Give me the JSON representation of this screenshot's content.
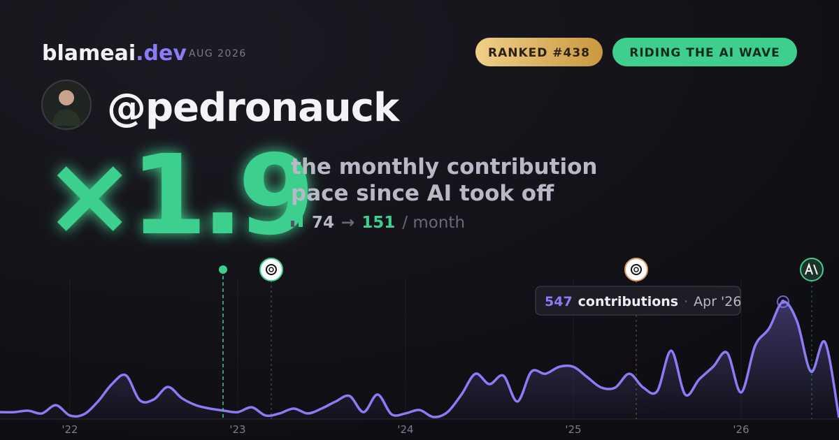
{
  "header": {
    "brand": "blameai",
    "brand_tld": ".dev",
    "period": "AUG 2026",
    "badges": [
      "RANKED #438",
      "RIDING THE AI WAVE"
    ]
  },
  "profile": {
    "handle": "@pedronauck"
  },
  "headline": {
    "multiplier": "×1.9",
    "description": [
      "the monthly contribution",
      "pace since AI took off"
    ],
    "from": 74,
    "arrow": "→",
    "to": 151,
    "unit": "/ month"
  },
  "tooltip": {
    "label": "contributions",
    "separator": "·",
    "date": "Apr '26"
  },
  "chart_data": {
    "type": "area",
    "color": "#8b7cf6",
    "categories": [
      null,
      null,
      null,
      null,
      null,
      "'22",
      null,
      null,
      null,
      null,
      null,
      null,
      null,
      null,
      null,
      null,
      null,
      "'23",
      null,
      null,
      null,
      null,
      null,
      null,
      null,
      null,
      null,
      null,
      null,
      "'24",
      null,
      null,
      null,
      null,
      null,
      null,
      null,
      null,
      null,
      null,
      null,
      "'25",
      null,
      null,
      null,
      null,
      null,
      null,
      null,
      null,
      null,
      null,
      null,
      "'26",
      null,
      null,
      null,
      null,
      null,
      null,
      null
    ],
    "values": [
      26,
      26,
      33,
      20,
      59,
      10,
      16,
      76,
      158,
      200,
      82,
      86,
      145,
      92,
      59,
      43,
      33,
      26,
      49,
      10,
      20,
      43,
      20,
      43,
      76,
      102,
      26,
      109,
      16,
      20,
      36,
      3,
      26,
      109,
      207,
      158,
      198,
      76,
      217,
      207,
      240,
      240,
      191,
      142,
      142,
      207,
      142,
      125,
      316,
      109,
      181,
      240,
      306,
      119,
      339,
      421,
      547,
      454,
      217,
      356,
      0
    ]
  }
}
